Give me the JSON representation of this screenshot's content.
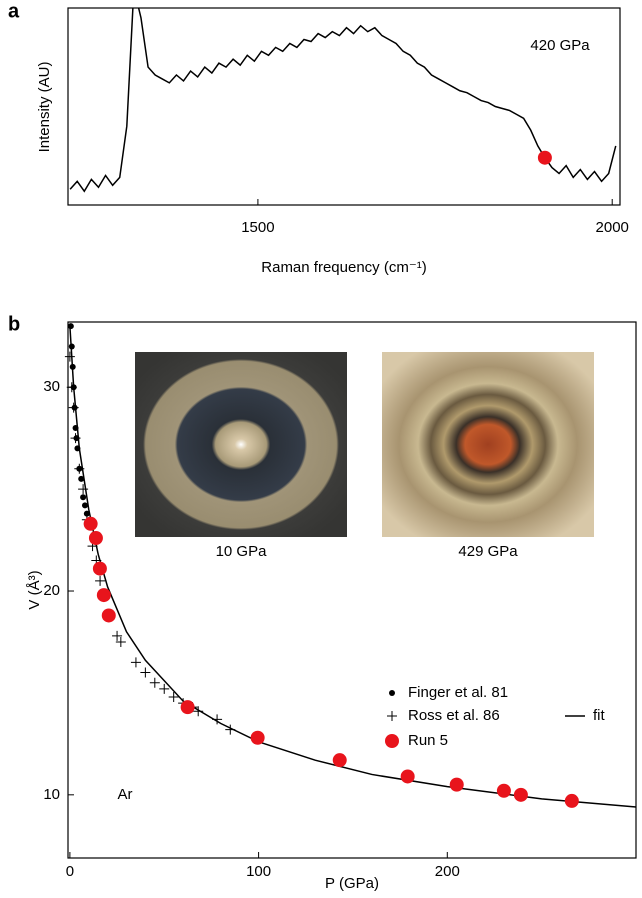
{
  "chart_data": [
    {
      "type": "line",
      "panel_label": "a",
      "annotation": "420 GPa",
      "x_label": "Raman frequency (cm⁻¹)",
      "y_label": "Intensity (AU)",
      "xlim": [
        1232,
        2011
      ],
      "ylim": [
        0,
        100
      ],
      "xticks": [
        1500,
        2000
      ],
      "series": [
        {
          "color": "#000000",
          "x": [
            1235,
            1245,
            1255,
            1265,
            1275,
            1285,
            1295,
            1305,
            1315,
            1325,
            1335,
            1345,
            1355,
            1365,
            1375,
            1385,
            1395,
            1405,
            1415,
            1425,
            1435,
            1445,
            1455,
            1465,
            1475,
            1485,
            1495,
            1505,
            1515,
            1525,
            1535,
            1545,
            1555,
            1565,
            1575,
            1585,
            1595,
            1605,
            1615,
            1625,
            1635,
            1645,
            1655,
            1665,
            1675,
            1685,
            1695,
            1705,
            1715,
            1725,
            1735,
            1745,
            1755,
            1765,
            1775,
            1785,
            1795,
            1805,
            1815,
            1825,
            1835,
            1845,
            1855,
            1865,
            1875,
            1885,
            1895,
            1905,
            1915,
            1925,
            1935,
            1945,
            1955,
            1965,
            1975,
            1985,
            1995,
            2005
          ],
          "values": [
            8,
            12,
            7,
            13,
            9,
            15,
            10,
            14,
            40,
            110,
            95,
            70,
            66,
            64,
            62,
            66,
            63,
            68,
            65,
            70,
            67,
            72,
            70,
            74,
            71,
            76,
            73,
            78,
            76,
            80,
            78,
            82,
            80,
            84,
            83,
            87,
            85,
            88,
            86,
            90,
            87,
            91,
            88,
            90,
            86,
            84,
            82,
            78,
            76,
            72,
            70,
            66,
            64,
            62,
            60,
            58,
            57,
            55,
            53,
            52,
            50,
            49,
            48,
            46,
            44,
            38,
            30,
            24,
            19,
            16,
            20,
            14,
            18,
            13,
            17,
            12,
            16,
            30
          ]
        }
      ],
      "highlight": {
        "x": 1905,
        "y": 24,
        "color": "#e8141c"
      }
    },
    {
      "type": "scatter",
      "panel_label": "b",
      "annotation": "Ar",
      "x_label": "P (GPa)",
      "y_label": "V (Å³)",
      "xlim": [
        -1,
        300
      ],
      "ylim": [
        6.9,
        33.2
      ],
      "xticks": [
        0,
        100,
        200
      ],
      "yticks": [
        10,
        20,
        30
      ],
      "insets": [
        {
          "caption": "10 GPa"
        },
        {
          "caption": "429 GPa"
        }
      ],
      "series": [
        {
          "name": "fit",
          "marker": "line",
          "color": "#000000",
          "x": [
            0,
            2,
            5,
            10,
            15,
            20,
            30,
            40,
            60,
            80,
            100,
            130,
            160,
            200,
            250,
            300
          ],
          "values": [
            33,
            30,
            27,
            24,
            21.8,
            20.2,
            18,
            16.6,
            14.6,
            13.5,
            12.6,
            11.7,
            11.0,
            10.4,
            9.8,
            9.4
          ]
        },
        {
          "name": "Finger et al. 81",
          "marker": "dot",
          "color": "#000000",
          "x": [
            0.5,
            1,
            1.5,
            2,
            2.5,
            3,
            3.5,
            4,
            5,
            6,
            7,
            8,
            9
          ],
          "values": [
            33,
            32,
            31,
            30,
            29,
            28,
            27.5,
            27,
            26,
            25.5,
            24.6,
            24.2,
            23.8
          ]
        },
        {
          "name": "Ross et al. 86",
          "marker": "plus",
          "color": "#000000",
          "x": [
            0,
            1,
            2,
            3,
            5,
            7,
            9,
            12,
            14,
            16,
            25,
            27,
            35,
            40,
            45,
            50,
            55,
            60,
            65,
            68,
            78,
            85
          ],
          "values": [
            31.5,
            30,
            29,
            27.5,
            26,
            25,
            23.5,
            22.2,
            21.5,
            20.5,
            17.8,
            17.5,
            16.5,
            16,
            15.5,
            15.2,
            14.8,
            14.5,
            14.3,
            14.1,
            13.7,
            13.2
          ]
        },
        {
          "name": "Run 5",
          "marker": "circle",
          "color": "#e8141c",
          "x": [
            11,
            13.8,
            15.9,
            18,
            20.6,
            62.4,
            99.5,
            143,
            179,
            205,
            230,
            239,
            266
          ],
          "values": [
            23.3,
            22.6,
            21.1,
            19.8,
            18.8,
            14.3,
            12.8,
            11.7,
            10.9,
            10.5,
            10.2,
            10.0,
            9.7
          ]
        }
      ]
    }
  ]
}
